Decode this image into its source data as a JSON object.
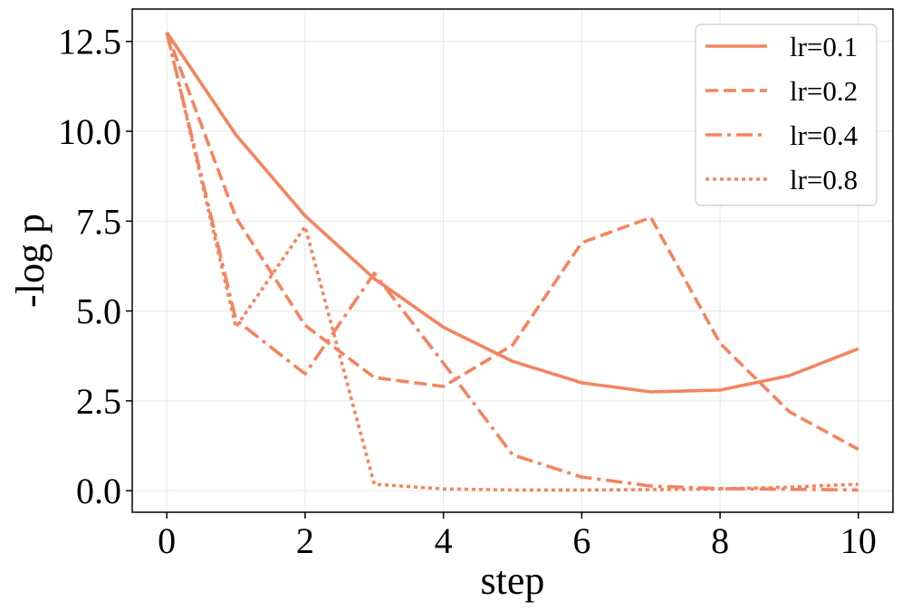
{
  "chart_data": {
    "type": "line",
    "xlabel": "step",
    "ylabel": "-log p",
    "xlim": [
      -0.5,
      10.5
    ],
    "ylim": [
      -0.6,
      13.4
    ],
    "xticks": [
      0,
      2,
      4,
      6,
      8,
      10
    ],
    "yticks": [
      0.0,
      2.5,
      5.0,
      7.5,
      10.0,
      12.5
    ],
    "ytick_labels": [
      "0.0",
      "2.5",
      "5.0",
      "7.5",
      "10.0",
      "12.5"
    ],
    "xtick_labels": [
      "0",
      "2",
      "4",
      "6",
      "8",
      "10"
    ],
    "grid": true,
    "legend_position": "top-right",
    "color": "#f4845f",
    "x": [
      0,
      1,
      2,
      3,
      4,
      5,
      6,
      7,
      8,
      9,
      10
    ],
    "series": [
      {
        "name": "lr=0.1",
        "dash": "solid",
        "values": [
          12.75,
          9.9,
          7.65,
          5.9,
          4.55,
          3.6,
          3.0,
          2.75,
          2.8,
          3.2,
          3.95
        ]
      },
      {
        "name": "lr=0.2",
        "dash": "dashed",
        "values": [
          12.75,
          7.6,
          4.6,
          3.15,
          2.9,
          4.05,
          6.9,
          7.6,
          4.1,
          2.2,
          1.15
        ]
      },
      {
        "name": "lr=0.4",
        "dash": "dashdot",
        "values": [
          12.75,
          4.75,
          3.25,
          6.05,
          3.55,
          1.0,
          0.38,
          0.13,
          0.06,
          0.04,
          0.02
        ]
      },
      {
        "name": "lr=0.8",
        "dash": "dotted",
        "values": [
          12.75,
          4.55,
          7.35,
          0.18,
          0.05,
          0.02,
          0.02,
          0.03,
          0.05,
          0.1,
          0.18
        ]
      }
    ]
  }
}
